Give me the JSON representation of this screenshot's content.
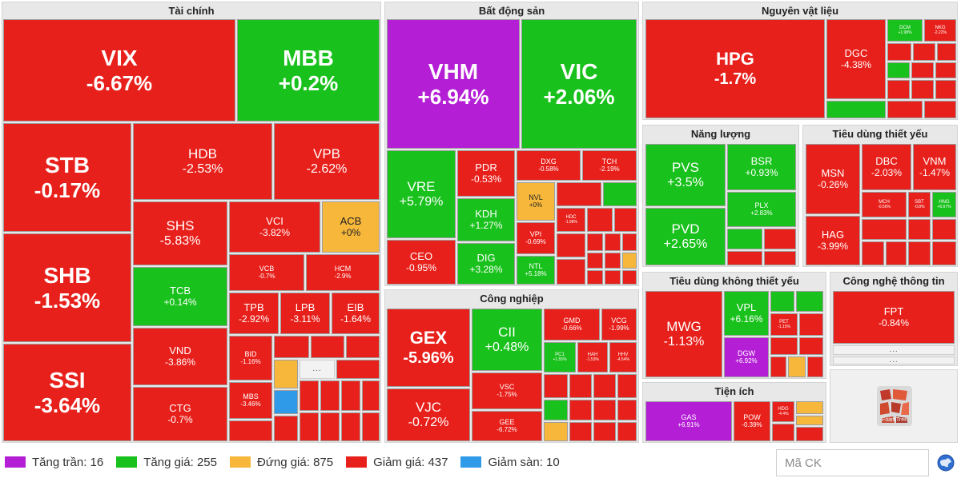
{
  "sectors": {
    "taichinh": "Tài chính",
    "batdongsan": "Bất động sản",
    "nguyenvatlieu": "Nguyên vật liệu",
    "nangluong": "Năng lượng",
    "tieudungthietyeu": "Tiêu dùng thiết yếu",
    "congnghiep": "Công nghiệp",
    "tieudungkhongthietyeu": "Tiêu dùng không thiết yếu",
    "congnghethongtin": "Công nghệ thông tin",
    "tienich": "Tiện ích"
  },
  "stocks": {
    "VIX": {
      "code": "VIX",
      "pct": "-6.67%"
    },
    "MBB": {
      "code": "MBB",
      "pct": "+0.2%"
    },
    "STB": {
      "code": "STB",
      "pct": "-0.17%"
    },
    "HDB": {
      "code": "HDB",
      "pct": "-2.53%"
    },
    "VPB": {
      "code": "VPB",
      "pct": "-2.62%"
    },
    "SHS": {
      "code": "SHS",
      "pct": "-5.83%"
    },
    "VCI": {
      "code": "VCI",
      "pct": "-3.82%"
    },
    "ACB": {
      "code": "ACB",
      "pct": "+0%"
    },
    "SHB": {
      "code": "SHB",
      "pct": "-1.53%"
    },
    "VCB": {
      "code": "VCB",
      "pct": "-0.7%"
    },
    "HCM": {
      "code": "HCM",
      "pct": "-2.9%"
    },
    "TCB": {
      "code": "TCB",
      "pct": "+0.14%"
    },
    "TPB": {
      "code": "TPB",
      "pct": "-2.92%"
    },
    "LPB": {
      "code": "LPB",
      "pct": "-3.11%"
    },
    "EIB": {
      "code": "EIB",
      "pct": "-1.64%"
    },
    "SSI": {
      "code": "SSI",
      "pct": "-3.64%"
    },
    "VND": {
      "code": "VND",
      "pct": "-3.86%"
    },
    "BID": {
      "code": "BID",
      "pct": "-1.16%"
    },
    "MBS": {
      "code": "MBS",
      "pct": "-3.46%"
    },
    "CTG": {
      "code": "CTG",
      "pct": "-0.7%"
    },
    "VHM": {
      "code": "VHM",
      "pct": "+6.94%"
    },
    "VIC": {
      "code": "VIC",
      "pct": "+2.06%"
    },
    "VRE": {
      "code": "VRE",
      "pct": "+5.79%"
    },
    "PDR": {
      "code": "PDR",
      "pct": "-0.53%"
    },
    "DXG": {
      "code": "DXG",
      "pct": "-0.58%"
    },
    "TCH": {
      "code": "TCH",
      "pct": "-2.19%"
    },
    "NVL": {
      "code": "NVL",
      "pct": "+0%"
    },
    "KDH": {
      "code": "KDH",
      "pct": "+1.27%"
    },
    "VPI": {
      "code": "VPI",
      "pct": "-0.69%"
    },
    "HDC": {
      "code": "HDC",
      "pct": "-1.98%"
    },
    "CEO": {
      "code": "CEO",
      "pct": "-0.95%"
    },
    "DIG": {
      "code": "DIG",
      "pct": "+3.28%"
    },
    "NTL": {
      "code": "NTL",
      "pct": "+5.18%"
    },
    "HPG": {
      "code": "HPG",
      "pct": "-1.7%"
    },
    "DGC": {
      "code": "DGC",
      "pct": "-4.38%"
    },
    "DCM": {
      "code": "DCM",
      "pct": "+1.98%"
    },
    "NKG": {
      "code": "NKG",
      "pct": "-2.22%"
    },
    "PVS": {
      "code": "PVS",
      "pct": "+3.5%"
    },
    "BSR": {
      "code": "BSR",
      "pct": "+0.93%"
    },
    "PVD": {
      "code": "PVD",
      "pct": "+2.65%"
    },
    "PLX": {
      "code": "PLX",
      "pct": "+2.83%"
    },
    "MSN": {
      "code": "MSN",
      "pct": "-0.26%"
    },
    "DBC": {
      "code": "DBC",
      "pct": "-2.03%"
    },
    "VNM": {
      "code": "VNM",
      "pct": "-1.47%"
    },
    "MCH": {
      "code": "MCH",
      "pct": "-0.56%"
    },
    "SBT": {
      "code": "SBT",
      "pct": "-0.8%"
    },
    "HNG": {
      "code": "HNG",
      "pct": "+6.67%"
    },
    "HAG": {
      "code": "HAG",
      "pct": "-3.99%"
    },
    "MWG": {
      "code": "MWG",
      "pct": "-1.13%"
    },
    "VPL": {
      "code": "VPL",
      "pct": "+6.16%"
    },
    "PET": {
      "code": "PET",
      "pct": "-1.15%"
    },
    "DGW": {
      "code": "DGW",
      "pct": "+6.92%"
    },
    "FPT": {
      "code": "FPT",
      "pct": "-0.84%"
    },
    "GEX": {
      "code": "GEX",
      "pct": "-5.96%"
    },
    "CII": {
      "code": "CII",
      "pct": "+0.48%"
    },
    "GMD": {
      "code": "GMD",
      "pct": "-0.66%"
    },
    "VCG": {
      "code": "VCG",
      "pct": "-1.99%"
    },
    "PC1": {
      "code": "PC1",
      "pct": "+1.55%"
    },
    "HAH": {
      "code": "HAH",
      "pct": "-1.53%"
    },
    "HHV": {
      "code": "HHV",
      "pct": "-4.54%"
    },
    "VJC": {
      "code": "VJC",
      "pct": "-0.72%"
    },
    "VSC": {
      "code": "VSC",
      "pct": "-1.75%"
    },
    "GEE": {
      "code": "GEE",
      "pct": "-6.72%"
    },
    "GAS": {
      "code": "GAS",
      "pct": "+6.91%"
    },
    "POW": {
      "code": "POW",
      "pct": "-0.39%"
    },
    "HDG": {
      "code": "HDG",
      "pct": "-4.4%"
    }
  },
  "more": "...",
  "foamtree_label": "FoamTree",
  "legend": [
    {
      "label": "Tăng trần: 16",
      "color": "#b41fd6"
    },
    {
      "label": "Tăng giá: 255",
      "color": "#19c11c"
    },
    {
      "label": "Đứng giá: 875",
      "color": "#f7b73b"
    },
    {
      "label": "Giảm giá: 437",
      "color": "#e8201b"
    },
    {
      "label": "Giảm sàn: 10",
      "color": "#2f9be8"
    }
  ],
  "search": {
    "placeholder": "Mã CK"
  },
  "icons": {
    "search_submit": "globe-icon",
    "foamtree": "foamtree-logo-icon"
  }
}
